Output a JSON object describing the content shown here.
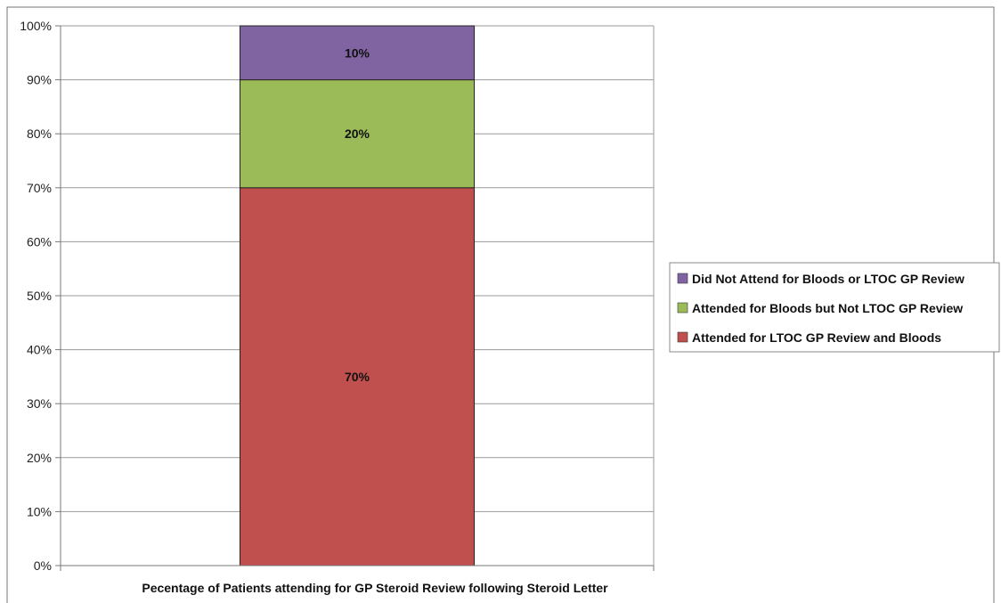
{
  "chart_data": {
    "type": "bar",
    "stacked": true,
    "percent_stacked": true,
    "categories": [
      "Pecentage of Patients attending for GP Steroid Review following Steroid Letter"
    ],
    "series": [
      {
        "name": "Attended for LTOC GP Review and Bloods",
        "values": [
          70
        ],
        "label": "70%",
        "color": "#c0504d"
      },
      {
        "name": "Attended for Bloods but Not LTOC GP Review",
        "values": [
          20
        ],
        "label": "20%",
        "color": "#9bbb59"
      },
      {
        "name": "Did Not Attend for Bloods or LTOC GP Review",
        "values": [
          10
        ],
        "label": "10%",
        "color": "#8064a2"
      }
    ],
    "y_ticks": [
      "0%",
      "10%",
      "20%",
      "30%",
      "40%",
      "50%",
      "60%",
      "70%",
      "80%",
      "90%",
      "100%"
    ],
    "ylim": [
      0,
      100
    ],
    "grid": true,
    "legend_position": "right",
    "legend_order": [
      "Did Not Attend for Bloods or LTOC GP Review",
      "Attended for Bloods but Not LTOC GP Review",
      "Attended for LTOC GP Review and Bloods"
    ],
    "title": "",
    "xlabel": "",
    "ylabel": ""
  }
}
